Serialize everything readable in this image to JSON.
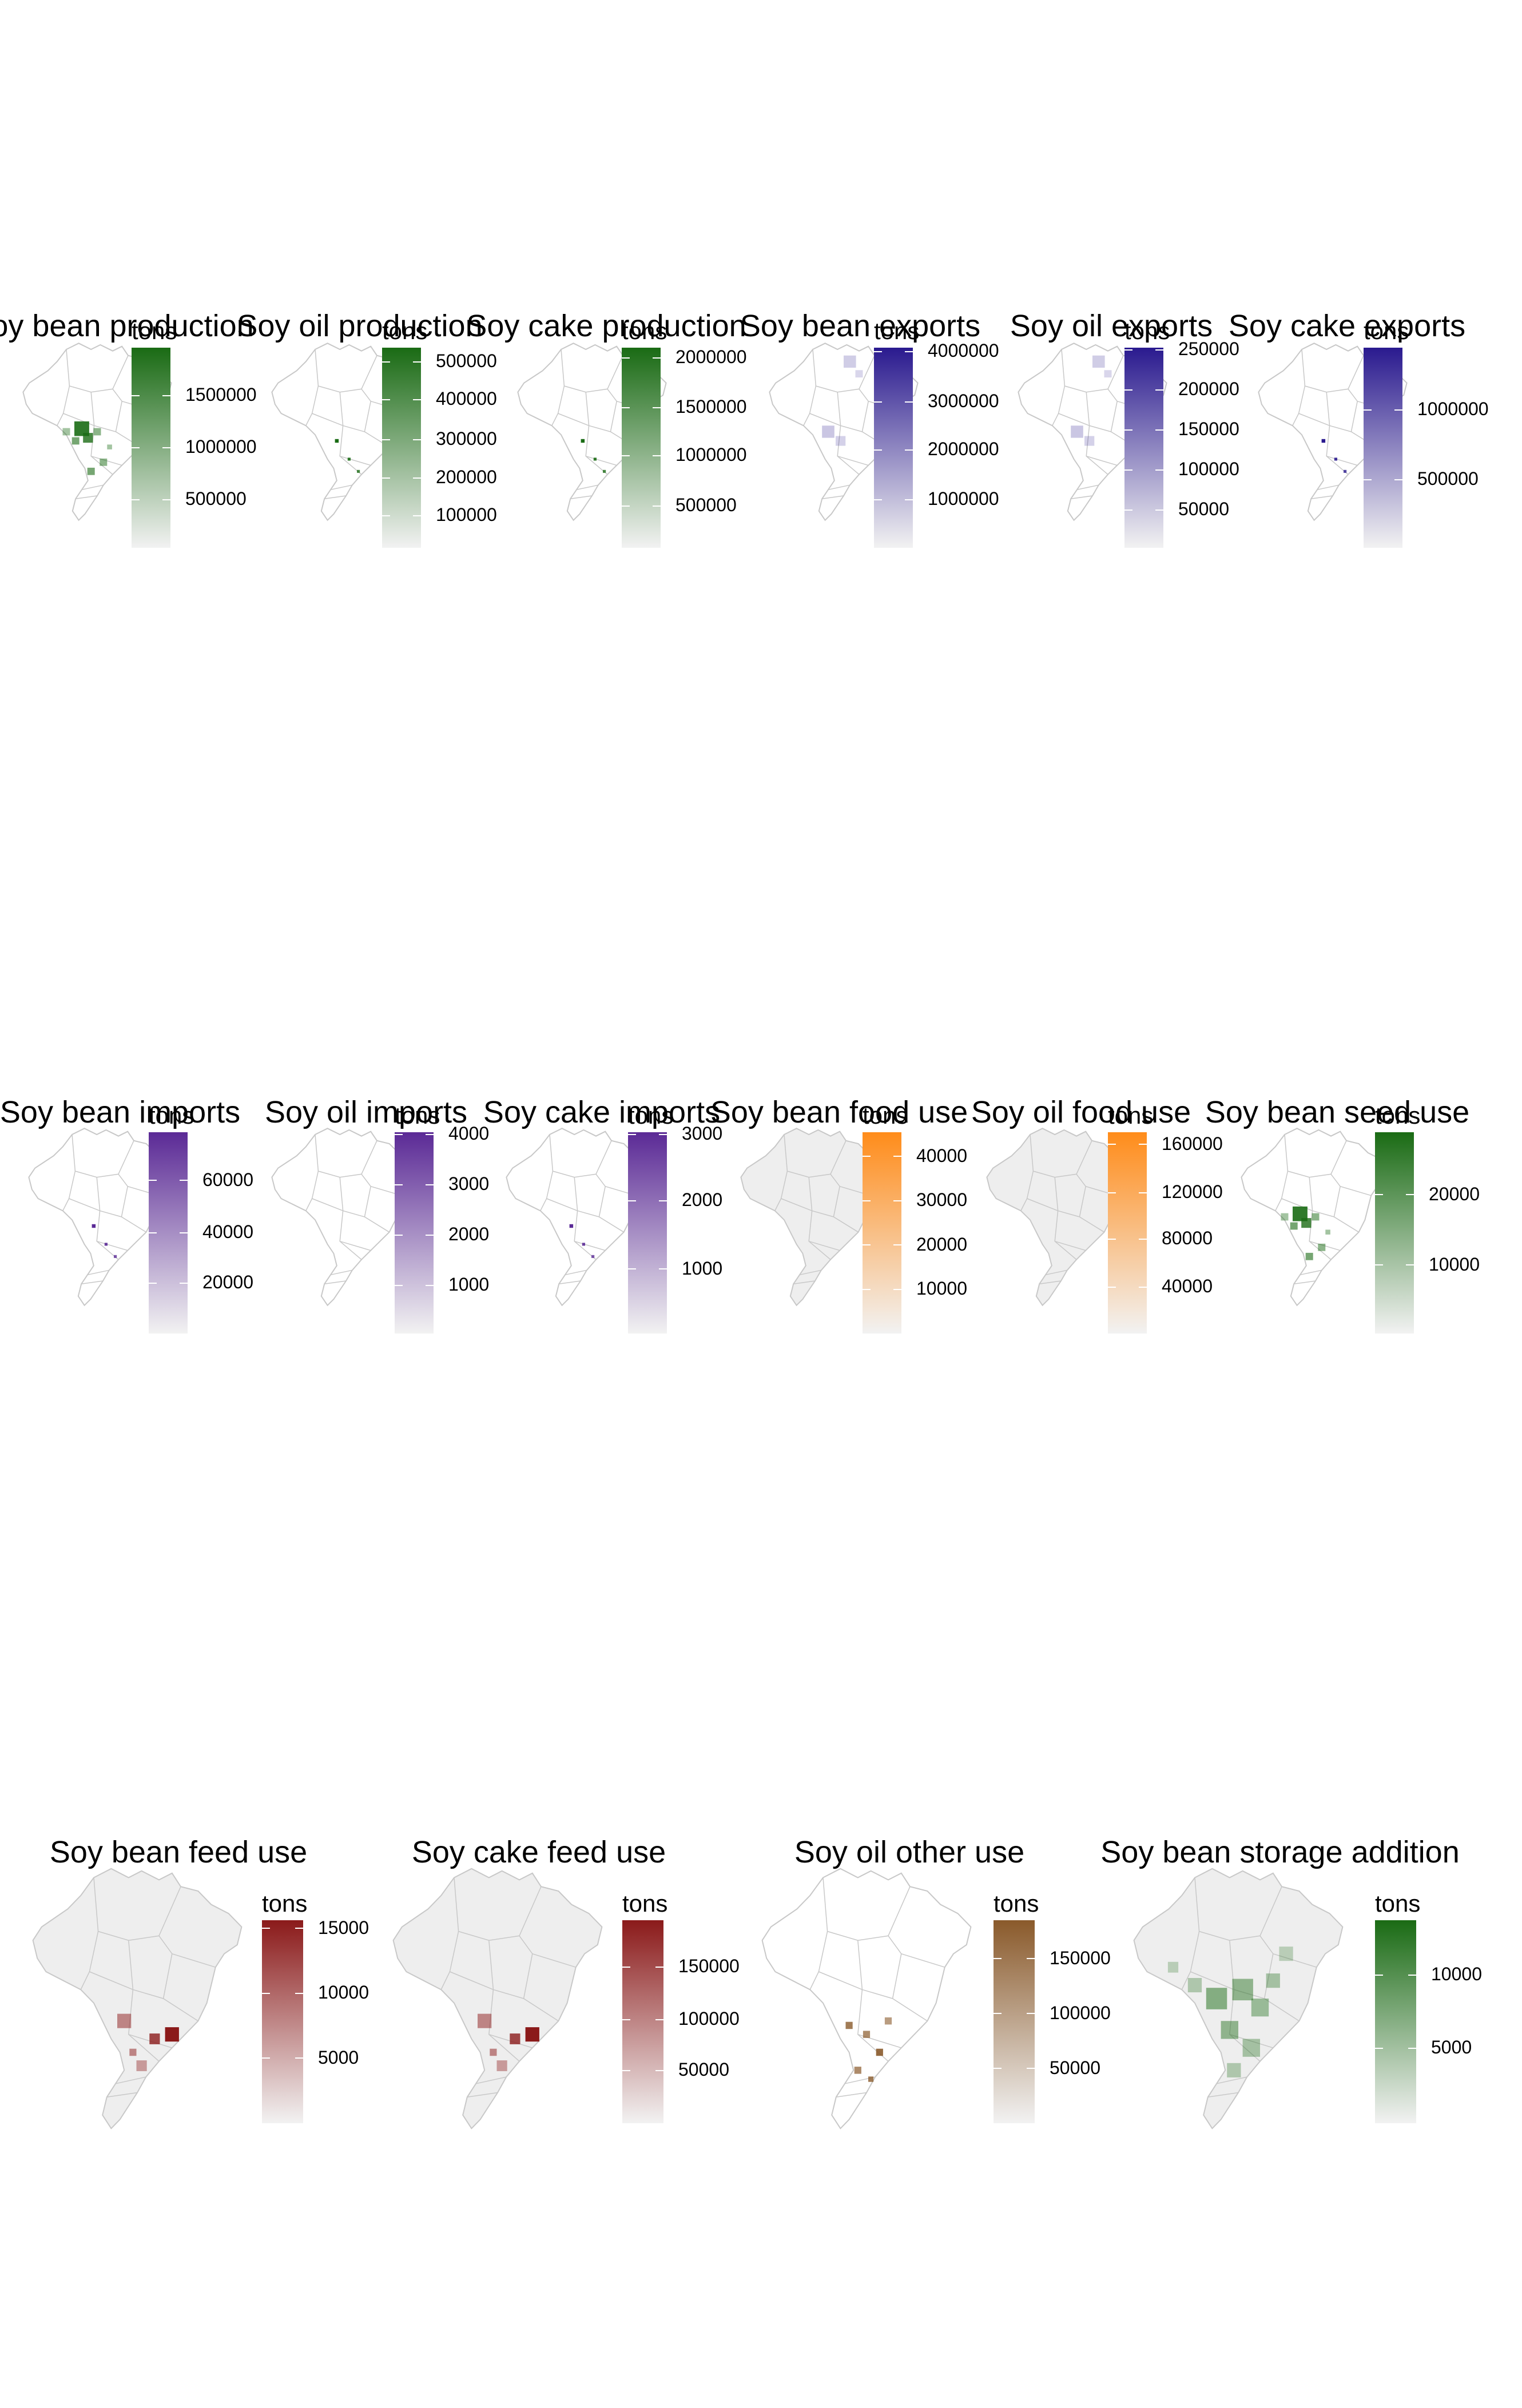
{
  "legend_unit": "tons",
  "colors": {
    "base_fill": "#eeeeee",
    "base_stroke": "#c8c8c8",
    "green": "#1a6b14",
    "purple_production": "#2a1a8f",
    "purple_imports": "#5b2a96",
    "orange": "#ff8c1a",
    "red": "#8b1a1a",
    "brown": "#8a5a2b"
  },
  "panels": [
    {
      "title": "Soy bean production",
      "legend_title": "tons",
      "color": "#1a6b14",
      "map_fill": "white",
      "legend_ticks": [
        "1500000",
        "1000000",
        "500000"
      ],
      "tick_fracs": [
        0.24,
        0.5,
        0.76
      ],
      "hot": "production"
    },
    {
      "title": "Soy oil  production",
      "legend_title": "tons",
      "color": "#1a6b14",
      "map_fill": "white",
      "legend_ticks": [
        "500000",
        "400000",
        "300000",
        "200000",
        "100000"
      ],
      "tick_fracs": [
        0.07,
        0.26,
        0.46,
        0.65,
        0.84
      ],
      "hot": "dots"
    },
    {
      "title": "Soy cake production",
      "legend_title": "tons",
      "color": "#1a6b14",
      "map_fill": "white",
      "legend_ticks": [
        "2000000",
        "1500000",
        "1000000",
        "500000"
      ],
      "tick_fracs": [
        0.05,
        0.3,
        0.54,
        0.79
      ],
      "hot": "dots"
    },
    {
      "title": "Soy bean exports",
      "legend_title": "tons",
      "color": "#2a1a8f",
      "map_fill": "white",
      "legend_ticks": [
        "4000000",
        "3000000",
        "2000000",
        "1000000"
      ],
      "tick_fracs": [
        0.02,
        0.27,
        0.51,
        0.76
      ],
      "hot": "faint"
    },
    {
      "title": "Soy oil exports",
      "legend_title": "tons",
      "color": "#2a1a8f",
      "map_fill": "white",
      "legend_ticks": [
        "250000",
        "200000",
        "150000",
        "100000",
        "50000"
      ],
      "tick_fracs": [
        0.01,
        0.21,
        0.41,
        0.61,
        0.81
      ],
      "hot": "faint"
    },
    {
      "title": "Soy cake exports",
      "legend_title": "tons",
      "color": "#2a1a8f",
      "map_fill": "white",
      "legend_ticks": [
        "1000000",
        "500000"
      ],
      "tick_fracs": [
        0.31,
        0.66
      ],
      "hot": "dots"
    },
    {
      "title": "Soy bean imports",
      "legend_title": "tons",
      "color": "#5b2a96",
      "map_fill": "white",
      "legend_ticks": [
        "60000",
        "40000",
        "20000"
      ],
      "tick_fracs": [
        0.24,
        0.5,
        0.75
      ],
      "hot": "dots"
    },
    {
      "title": "Soy oil imports",
      "legend_title": "tons",
      "color": "#5b2a96",
      "map_fill": "white",
      "legend_ticks": [
        "4000",
        "3000",
        "2000",
        "1000"
      ],
      "tick_fracs": [
        0.01,
        0.26,
        0.51,
        0.76
      ],
      "hot": "none"
    },
    {
      "title": "Soy cake imports",
      "legend_title": "tons",
      "color": "#5b2a96",
      "map_fill": "white",
      "legend_ticks": [
        "3000",
        "2000",
        "1000"
      ],
      "tick_fracs": [
        0.01,
        0.34,
        0.68
      ],
      "hot": "dots"
    },
    {
      "title": "Soy bean food use",
      "legend_title": "tons",
      "color": "#ff8c1a",
      "map_fill": "grey",
      "legend_ticks": [
        "40000",
        "30000",
        "20000",
        "10000"
      ],
      "tick_fracs": [
        0.12,
        0.34,
        0.56,
        0.78
      ],
      "hot": "none"
    },
    {
      "title": "Soy oil food use",
      "legend_title": "tons",
      "color": "#ff8c1a",
      "map_fill": "grey",
      "legend_ticks": [
        "160000",
        "120000",
        "80000",
        "40000"
      ],
      "tick_fracs": [
        0.06,
        0.3,
        0.53,
        0.77
      ],
      "hot": "none"
    },
    {
      "title": "Soy bean seed use",
      "legend_title": "tons",
      "color": "#1a6b14",
      "map_fill": "white",
      "legend_ticks": [
        "20000",
        "10000"
      ],
      "tick_fracs": [
        0.31,
        0.66
      ],
      "hot": "production"
    },
    {
      "title": "Soy bean feed use",
      "legend_title": "tons",
      "color": "#8b1a1a",
      "map_fill": "grey",
      "legend_ticks": [
        "15000",
        "10000",
        "5000"
      ],
      "tick_fracs": [
        0.04,
        0.36,
        0.68
      ],
      "hot": "feed"
    },
    {
      "title": "Soy cake feed use",
      "legend_title": "tons",
      "color": "#8b1a1a",
      "map_fill": "grey",
      "legend_ticks": [
        "150000",
        "100000",
        "50000"
      ],
      "tick_fracs": [
        0.23,
        0.49,
        0.74
      ],
      "hot": "feed"
    },
    {
      "title": "Soy oil other use",
      "legend_title": "tons",
      "color": "#8a5a2b",
      "map_fill": "white",
      "legend_ticks": [
        "150000",
        "100000",
        "50000"
      ],
      "tick_fracs": [
        0.19,
        0.46,
        0.73
      ],
      "hot": "brown"
    },
    {
      "title": "Soy bean storage addition",
      "legend_title": "tons",
      "color": "#1a6b14",
      "map_fill": "grey",
      "legend_ticks": [
        "10000",
        "5000"
      ],
      "tick_fracs": [
        0.27,
        0.63
      ],
      "hot": "storage"
    }
  ]
}
